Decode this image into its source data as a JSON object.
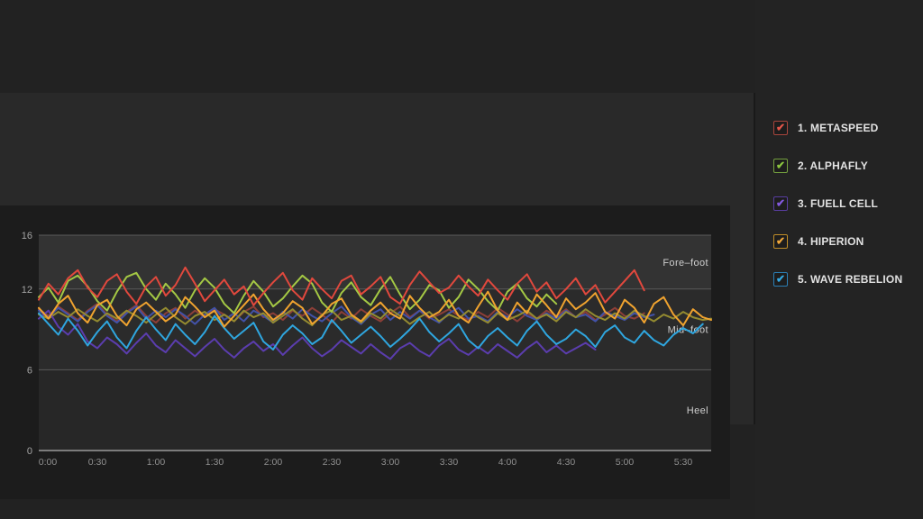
{
  "page": {
    "background": "#222222",
    "card_background": "#1c1c1c",
    "row_background": "#292929",
    "legend_panel_background": "#232323"
  },
  "icons": {
    "checkbox_check": "✔"
  },
  "legend": {
    "items": [
      {
        "label": "1. METASPEED",
        "checked": true,
        "border_color": "#a8453c",
        "check_color": "#e5564a"
      },
      {
        "label": "2. ALPHAFLY",
        "checked": true,
        "border_color": "#74a03f",
        "check_color": "#8cc63f"
      },
      {
        "label": "3. FUELL CELL",
        "checked": true,
        "border_color": "#583da0",
        "check_color": "#855ae0"
      },
      {
        "label": "4. HIPERION",
        "checked": true,
        "border_color": "#bf8d28",
        "check_color": "#f2a93b"
      },
      {
        "label": "5. WAVE REBELION",
        "checked": true,
        "border_color": "#2b7fb5",
        "check_color": "#35aae4"
      }
    ]
  },
  "chart_data": {
    "type": "line",
    "title": "",
    "xlabel": "",
    "ylabel": "",
    "x_unit": "elapsed time (h:mm)",
    "x_tick_labels": [
      "0:00",
      "0:30",
      "1:00",
      "1:30",
      "2:00",
      "2:30",
      "3:00",
      "3:30",
      "4:00",
      "4:30",
      "5:00",
      "5:30"
    ],
    "x_tick_interval_min": 30,
    "x_range_min": [
      0,
      345
    ],
    "y_ticks": [
      16,
      12,
      6,
      0
    ],
    "ylim": [
      0,
      16
    ],
    "grid": "horizontal-only",
    "legend_position": "right-panel",
    "zones": [
      {
        "label": "Fore–foot",
        "from": 12,
        "to": 16,
        "band_color": "#333333"
      },
      {
        "label": "Mid–foot",
        "from": 6,
        "to": 12,
        "band_color": "#2b2b2b"
      },
      {
        "label": "Heel",
        "from": 0,
        "to": 6,
        "band_color": "#272727"
      }
    ],
    "step_min": 5,
    "series": [
      {
        "name": "1. METASPEED",
        "in_legend": true,
        "color": "#e1483d",
        "z": 8,
        "values": [
          11.2,
          12.4,
          11.6,
          12.8,
          13.4,
          12.1,
          11.4,
          12.6,
          13.1,
          11.8,
          10.9,
          12.2,
          12.9,
          11.5,
          12.3,
          13.6,
          12.4,
          11.1,
          11.9,
          12.7,
          11.6,
          12.2,
          10.8,
          11.7,
          12.5,
          13.2,
          11.9,
          11.2,
          12.8,
          12.0,
          11.3,
          12.6,
          13.0,
          11.6,
          12.2,
          12.9,
          11.4,
          10.9,
          12.3,
          13.3,
          12.5,
          11.7,
          12.1,
          13.0,
          12.2,
          11.5,
          12.7,
          11.9,
          11.2,
          12.4,
          13.1,
          11.8,
          12.5,
          11.3,
          12.0,
          12.8,
          11.6,
          12.3,
          11.0,
          11.8,
          12.6,
          13.4,
          11.9
        ]
      },
      {
        "name": "2. ALPHAFLY",
        "in_legend": true,
        "color": "#a4c844",
        "z": 6,
        "values": [
          11.4,
          12.1,
          11.0,
          12.6,
          13.0,
          12.2,
          11.1,
          10.4,
          11.8,
          12.9,
          13.2,
          12.0,
          11.2,
          12.4,
          11.6,
          10.6,
          11.9,
          12.8,
          12.1,
          10.9,
          10.2,
          11.5,
          12.6,
          11.8,
          10.7,
          11.3,
          12.2,
          13.0,
          12.4,
          11.0,
          10.3,
          11.7,
          12.5,
          11.4,
          10.8,
          12.0,
          12.9,
          11.6,
          10.5,
          11.2,
          12.3,
          11.9,
          10.6,
          11.4,
          12.7,
          12.0,
          11.1,
          10.4,
          11.8,
          12.4,
          11.3,
          10.7,
          11.6,
          10.9
        ]
      },
      {
        "name": "3. FUELL CELL",
        "in_legend": true,
        "color": "#5b3dae",
        "z": 4,
        "values": [
          9.8,
          10.4,
          9.2,
          8.6,
          9.4,
          8.1,
          7.6,
          8.4,
          7.9,
          7.2,
          8.0,
          8.7,
          7.8,
          7.3,
          8.2,
          7.6,
          7.0,
          7.7,
          8.3,
          7.5,
          6.9,
          7.6,
          8.1,
          7.4,
          7.9,
          7.1,
          7.8,
          8.4,
          7.6,
          7.0,
          7.5,
          8.2,
          7.7,
          7.2,
          7.9,
          7.3,
          6.8,
          7.6,
          8.0,
          7.4,
          7.0,
          7.8,
          8.3,
          7.5,
          7.1,
          7.7,
          7.2,
          7.9,
          7.4,
          6.9,
          7.6,
          8.1,
          7.3,
          7.8,
          7.2,
          7.6,
          8.0,
          7.5
        ]
      },
      {
        "name": "4. HIPERION",
        "in_legend": true,
        "color": "#f0a32f",
        "z": 7,
        "values": [
          10.6,
          9.8,
          10.9,
          11.5,
          10.2,
          9.5,
          10.8,
          11.2,
          10.0,
          9.3,
          10.5,
          11.0,
          10.3,
          9.6,
          10.1,
          11.4,
          10.7,
          9.9,
          10.4,
          9.2,
          10.0,
          10.8,
          11.6,
          10.5,
          9.7,
          10.2,
          11.1,
          10.6,
          9.4,
          10.0,
          10.9,
          11.3,
          10.1,
          9.6,
          10.4,
          11.0,
          10.2,
          9.8,
          11.5,
          10.6,
          9.9,
          10.3,
          11.2,
          10.0,
          9.5,
          10.7,
          11.8,
          10.4,
          9.7,
          11.0,
          10.2,
          11.6,
          10.8,
          9.9,
          11.3,
          10.5,
          11.0,
          11.7,
          10.3,
          9.8,
          11.2,
          10.6,
          9.5,
          10.9,
          11.4,
          10.1,
          9.3,
          10.5,
          9.9,
          9.7
        ]
      },
      {
        "name": "5. WAVE REBELION",
        "in_legend": true,
        "color": "#2fa6df",
        "z": 5,
        "values": [
          10.2,
          9.4,
          8.6,
          9.8,
          8.9,
          7.8,
          8.8,
          9.6,
          8.4,
          7.6,
          8.9,
          9.9,
          9.0,
          8.2,
          9.4,
          8.6,
          7.9,
          8.8,
          10.0,
          9.1,
          8.3,
          8.9,
          9.5,
          8.1,
          7.5,
          8.6,
          9.3,
          8.7,
          7.9,
          8.4,
          9.7,
          8.9,
          8.0,
          8.6,
          9.2,
          8.5,
          7.7,
          8.3,
          9.0,
          9.8,
          8.8,
          8.1,
          8.7,
          9.4,
          8.2,
          7.6,
          8.5,
          9.1,
          8.4,
          7.8,
          8.9,
          9.6,
          8.6,
          7.9,
          8.3,
          9.0,
          8.5,
          7.7,
          8.8,
          9.3,
          8.4,
          8.0,
          8.9,
          8.2,
          7.8,
          8.6,
          9.1,
          8.7,
          9.4
        ]
      },
      {
        "name": "unlabeled-olive",
        "in_legend": false,
        "color": "#948b30",
        "z": 3,
        "values": [
          10.1,
          9.8,
          10.3,
          9.9,
          10.5,
          10.0,
          9.6,
          10.2,
          9.8,
          10.4,
          10.0,
          9.5,
          10.1,
          10.6,
          9.9,
          9.4,
          10.0,
          10.3,
          9.7,
          10.1,
          9.6,
          10.4,
          9.9,
          10.2,
          9.5,
          10.0,
          10.5,
          9.8,
          9.3,
          10.1,
          10.4,
          9.7,
          10.0,
          9.5,
          10.2,
          9.8,
          10.5,
          10.0,
          9.4,
          9.9,
          10.3,
          9.6,
          10.1,
          9.8,
          10.4,
          9.9,
          9.5,
          10.2,
          9.7,
          10.0,
          10.4,
          9.8,
          10.1,
          9.6,
          10.3,
          9.9,
          10.5,
          10.0,
          9.7,
          10.2,
          9.8,
          10.4,
          10.0,
          9.6,
          10.1,
          9.8,
          10.3,
          9.9,
          9.7,
          9.8
        ]
      },
      {
        "name": "unlabeled-indigo",
        "in_legend": false,
        "color": "#4252a8",
        "z": 2,
        "values": [
          10.4,
          9.9,
          10.6,
          10.1,
          9.6,
          10.3,
          10.8,
          10.0,
          9.5,
          10.2,
          10.7,
          9.8,
          10.4,
          9.9,
          10.5,
          10.0,
          9.4,
          10.1,
          10.6,
          9.7,
          10.2,
          9.6,
          10.4,
          10.0,
          9.5,
          10.3,
          9.8,
          10.5,
          10.0,
          9.6,
          10.2,
          10.7,
          9.9,
          9.4,
          10.1,
          10.5,
          9.7,
          10.3,
          9.8,
          10.4,
          9.9,
          9.5,
          10.2,
          10.6,
          9.8,
          10.0,
          9.6,
          10.3,
          9.9,
          10.5,
          10.0,
          9.7,
          10.2,
          9.8,
          10.4,
          9.9,
          10.1,
          9.6,
          10.3,
          10.0,
          9.7,
          10.2,
          9.9,
          10.1
        ]
      },
      {
        "name": "unlabeled-dark-red",
        "in_legend": false,
        "color": "#8d3f38",
        "z": 1,
        "values": [
          10.5,
          10.0,
          10.7,
          10.2,
          9.7,
          10.4,
          10.9,
          10.1,
          9.6,
          10.3,
          10.8,
          10.0,
          9.5,
          10.2,
          10.6,
          9.8,
          10.4,
          9.9,
          10.5,
          10.1,
          9.6,
          10.3,
          10.7,
          9.9,
          10.2,
          9.7,
          10.4,
          10.0,
          10.6,
          10.1,
          9.5,
          10.3,
          9.8,
          10.5,
          10.0,
          9.6,
          10.2,
          10.7,
          9.9,
          10.4,
          9.8,
          10.1,
          10.5,
          10.0,
          9.7,
          10.3,
          9.9,
          10.6,
          10.1,
          9.6,
          10.2,
          9.8,
          10.4,
          10.0,
          10.5,
          9.9,
          10.3,
          9.7,
          10.1,
          10.6,
          10.0,
          9.8,
          10.2
        ]
      }
    ]
  }
}
